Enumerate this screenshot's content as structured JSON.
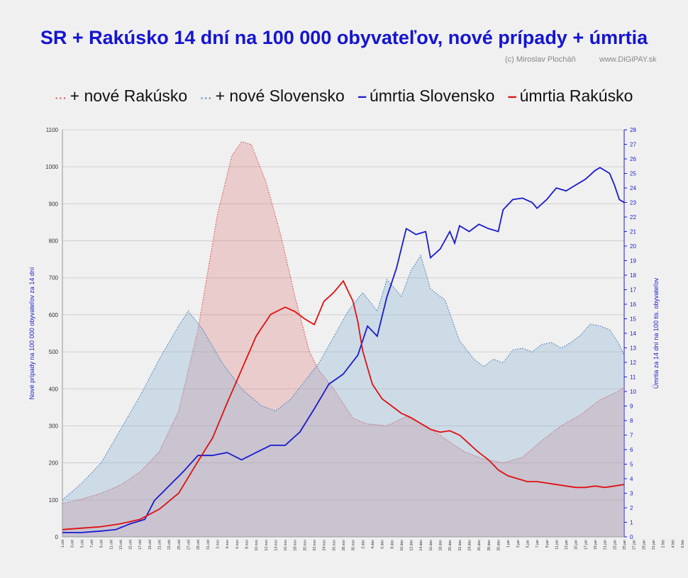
{
  "title": "SR + Rakúsko 14 dní na 100 000 obyvateľov,  nové prípady + úmrtia",
  "credits": [
    "(c) Miroslav Plocháň",
    "www.DiGiPAY.sk"
  ],
  "legend": [
    {
      "label": "+ nové Rakúsko",
      "color": "#e05050",
      "style": "dotted"
    },
    {
      "label": "+ nové Slovensko",
      "color": "#4a7fb5",
      "style": "dotted"
    },
    {
      "label": "úmrtia Slovensko",
      "color": "#1a1ad0",
      "style": "solid"
    },
    {
      "label": "úmrtia Rakúsko",
      "color": "#e01010",
      "style": "solid"
    }
  ],
  "chart_data": {
    "type": "area",
    "ylabel": "Nové prípady na 100 000 obyvateľov za 14 dní",
    "y2label": "Úmrtia za 14 dní na 100 tis. obyvateľov",
    "ylim": [
      0,
      1100
    ],
    "yticks": [
      0,
      100,
      200,
      300,
      400,
      500,
      600,
      700,
      800,
      900,
      1000,
      1100
    ],
    "y2lim": [
      0,
      28
    ],
    "y2ticks": [
      0,
      1,
      2,
      3,
      4,
      5,
      6,
      7,
      8,
      9,
      10,
      11,
      12,
      13,
      14,
      15,
      16,
      17,
      18,
      19,
      20,
      21,
      22,
      23,
      24,
      25,
      26,
      27,
      28
    ],
    "grid": true,
    "x_labels": [
      "1.okt",
      "3.okt",
      "5.okt",
      "7.okt",
      "9.okt",
      "11.okt",
      "13.okt",
      "15.okt",
      "17.okt",
      "19.okt",
      "21.okt",
      "23.okt",
      "25.okt",
      "27.okt",
      "29.okt",
      "31.okt",
      "2.nov",
      "4.nov",
      "6.nov",
      "8.nov",
      "10.nov",
      "12.nov",
      "14.nov",
      "16.nov",
      "18.nov",
      "20.nov",
      "22.nov",
      "24.nov",
      "26.nov",
      "28.nov",
      "30.nov",
      "2.dec",
      "4.dec",
      "6.dec",
      "8.dec",
      "10.dec",
      "12.dec",
      "14.dec",
      "16.dec",
      "18.dec",
      "20.dec",
      "22.dec",
      "24.dec",
      "26.dec",
      "28.dec",
      "30.dec",
      "1.jan",
      "3.jan",
      "5.jan",
      "7.jan",
      "9.jan",
      "11.jan",
      "13.jan",
      "15.jan",
      "17.jan",
      "19.jan",
      "21.jan",
      "23.jan",
      "25.jan",
      "27.jan",
      "29.jan",
      "31.jan",
      "2.feb",
      "4.feb",
      "6.feb",
      "8.feb",
      "10.feb",
      "12.feb",
      "14.feb",
      "16.feb",
      "18.feb",
      "20.feb",
      "22.feb",
      "24.feb",
      "26.feb",
      "28.feb",
      "2.mar",
      "4.mar",
      "6.mar",
      "8.mar",
      "10.mar",
      "12.mar",
      "14.mar",
      "16.mar",
      "18.mar"
    ],
    "series": [
      {
        "name": "+ nové Rakúsko",
        "axis": "left",
        "color": "#e05050",
        "fill": "rgba(220,110,110,0.28)",
        "points": [
          [
            0,
            90
          ],
          [
            4,
            102
          ],
          [
            8,
            118
          ],
          [
            12,
            140
          ],
          [
            16,
            175
          ],
          [
            20,
            230
          ],
          [
            24,
            340
          ],
          [
            28,
            560
          ],
          [
            32,
            870
          ],
          [
            35,
            1030
          ],
          [
            37,
            1068
          ],
          [
            39,
            1060
          ],
          [
            42,
            960
          ],
          [
            45,
            820
          ],
          [
            48,
            650
          ],
          [
            51,
            500
          ],
          [
            53,
            450
          ],
          [
            56,
            400
          ],
          [
            60,
            320
          ],
          [
            63,
            305
          ],
          [
            67,
            300
          ],
          [
            71,
            325
          ],
          [
            75,
            300
          ],
          [
            79,
            265
          ],
          [
            83,
            230
          ],
          [
            87,
            210
          ],
          [
            91,
            200
          ],
          [
            95,
            215
          ],
          [
            99,
            260
          ],
          [
            103,
            300
          ],
          [
            107,
            330
          ],
          [
            111,
            370
          ],
          [
            115,
            395
          ],
          [
            116,
            405
          ]
        ]
      },
      {
        "name": "+ nové Slovensko",
        "axis": "left",
        "color": "#4a7fb5",
        "fill": "rgba(140,180,215,0.35)",
        "points": [
          [
            0,
            100
          ],
          [
            4,
            145
          ],
          [
            8,
            200
          ],
          [
            12,
            290
          ],
          [
            16,
            380
          ],
          [
            20,
            480
          ],
          [
            24,
            570
          ],
          [
            26,
            610
          ],
          [
            29,
            560
          ],
          [
            33,
            470
          ],
          [
            37,
            400
          ],
          [
            41,
            355
          ],
          [
            44,
            340
          ],
          [
            47,
            370
          ],
          [
            50,
            420
          ],
          [
            53,
            470
          ],
          [
            56,
            540
          ],
          [
            59,
            610
          ],
          [
            62,
            660
          ],
          [
            65,
            610
          ],
          [
            67,
            695
          ],
          [
            70,
            650
          ],
          [
            72,
            720
          ],
          [
            74,
            760
          ],
          [
            76,
            670
          ],
          [
            79,
            640
          ],
          [
            82,
            530
          ],
          [
            85,
            480
          ],
          [
            87,
            460
          ],
          [
            89,
            480
          ],
          [
            91,
            470
          ],
          [
            93,
            505
          ],
          [
            95,
            510
          ],
          [
            97,
            500
          ],
          [
            99,
            520
          ],
          [
            101,
            525
          ],
          [
            103,
            510
          ],
          [
            105,
            525
          ],
          [
            107,
            545
          ],
          [
            109,
            575
          ],
          [
            111,
            570
          ],
          [
            113,
            560
          ],
          [
            115,
            520
          ],
          [
            116,
            490
          ]
        ]
      },
      {
        "name": "úmrtia Slovensko",
        "axis": "right",
        "color": "#1a1ad0",
        "points": [
          [
            0,
            0.3
          ],
          [
            4,
            0.3
          ],
          [
            8,
            0.4
          ],
          [
            11,
            0.5
          ],
          [
            14,
            0.9
          ],
          [
            17,
            1.2
          ],
          [
            19,
            2.5
          ],
          [
            22,
            3.5
          ],
          [
            25,
            4.5
          ],
          [
            28,
            5.6
          ],
          [
            31,
            5.6
          ],
          [
            34,
            5.8
          ],
          [
            37,
            5.3
          ],
          [
            40,
            5.8
          ],
          [
            43,
            6.3
          ],
          [
            46,
            6.3
          ],
          [
            49,
            7.2
          ],
          [
            52,
            8.8
          ],
          [
            55,
            10.5
          ],
          [
            58,
            11.2
          ],
          [
            61,
            12.5
          ],
          [
            63,
            14.5
          ],
          [
            65,
            13.8
          ],
          [
            67,
            16.5
          ],
          [
            69,
            18.5
          ],
          [
            71,
            21.2
          ],
          [
            73,
            20.8
          ],
          [
            75,
            21.0
          ],
          [
            76,
            19.2
          ],
          [
            78,
            19.8
          ],
          [
            80,
            21.0
          ],
          [
            81,
            20.2
          ],
          [
            82,
            21.4
          ],
          [
            84,
            21.0
          ],
          [
            86,
            21.5
          ],
          [
            88,
            21.2
          ],
          [
            90,
            21.0
          ],
          [
            91,
            22.5
          ],
          [
            93,
            23.2
          ],
          [
            95,
            23.3
          ],
          [
            97,
            23.0
          ],
          [
            98,
            22.6
          ],
          [
            100,
            23.2
          ],
          [
            102,
            24.0
          ],
          [
            104,
            23.8
          ],
          [
            106,
            24.2
          ],
          [
            108,
            24.6
          ],
          [
            110,
            25.2
          ],
          [
            111,
            25.4
          ],
          [
            113,
            25.0
          ],
          [
            114,
            24.2
          ],
          [
            115,
            23.2
          ],
          [
            116,
            23.0
          ]
        ]
      },
      {
        "name": "úmrtia Rakúsko",
        "axis": "right",
        "color": "#e01010",
        "points": [
          [
            0,
            0.5
          ],
          [
            4,
            0.6
          ],
          [
            8,
            0.7
          ],
          [
            12,
            0.9
          ],
          [
            16,
            1.2
          ],
          [
            20,
            1.9
          ],
          [
            24,
            3.0
          ],
          [
            28,
            5.2
          ],
          [
            31,
            6.8
          ],
          [
            34,
            9.2
          ],
          [
            37,
            11.5
          ],
          [
            40,
            13.8
          ],
          [
            43,
            15.3
          ],
          [
            46,
            15.8
          ],
          [
            48,
            15.5
          ],
          [
            50,
            15.0
          ],
          [
            52,
            14.6
          ],
          [
            54,
            16.2
          ],
          [
            56,
            16.8
          ],
          [
            58,
            17.6
          ],
          [
            60,
            16.2
          ],
          [
            61,
            14.8
          ],
          [
            62,
            12.8
          ],
          [
            64,
            10.5
          ],
          [
            66,
            9.5
          ],
          [
            68,
            9.0
          ],
          [
            70,
            8.5
          ],
          [
            72,
            8.2
          ],
          [
            74,
            7.8
          ],
          [
            76,
            7.4
          ],
          [
            78,
            7.2
          ],
          [
            80,
            7.3
          ],
          [
            82,
            7.0
          ],
          [
            84,
            6.4
          ],
          [
            86,
            5.8
          ],
          [
            88,
            5.3
          ],
          [
            90,
            4.6
          ],
          [
            92,
            4.2
          ],
          [
            94,
            4.0
          ],
          [
            96,
            3.8
          ],
          [
            98,
            3.8
          ],
          [
            100,
            3.7
          ],
          [
            102,
            3.6
          ],
          [
            104,
            3.5
          ],
          [
            106,
            3.4
          ],
          [
            108,
            3.4
          ],
          [
            110,
            3.5
          ],
          [
            112,
            3.4
          ],
          [
            114,
            3.5
          ],
          [
            116,
            3.6
          ]
        ]
      }
    ]
  }
}
